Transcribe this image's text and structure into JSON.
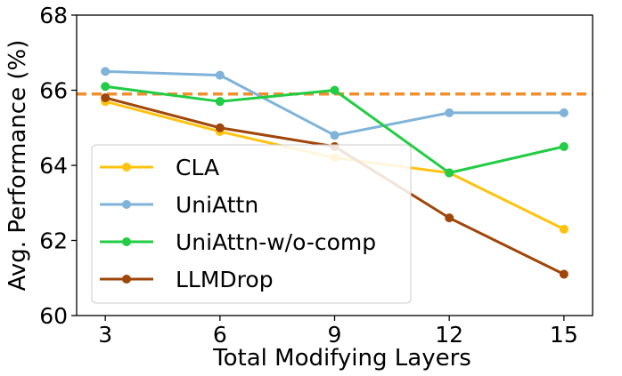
{
  "chart_data": {
    "type": "line",
    "xlabel": "Total Modifying Layers",
    "ylabel": "Avg. Performance (%)",
    "x": [
      3,
      6,
      9,
      12,
      15
    ],
    "xticks": [
      "3",
      "6",
      "9",
      "12",
      "15"
    ],
    "yticks": [
      "60",
      "62",
      "64",
      "66",
      "68"
    ],
    "xlim": [
      2.25,
      15.75
    ],
    "ylim": [
      60,
      68
    ],
    "grid": false,
    "legend_position": "lower-left",
    "reference_line": {
      "y": 65.9,
      "style": "dashed",
      "color": "#f28e2b"
    },
    "series": [
      {
        "name": "CLA",
        "color": "#ffc20e",
        "values": [
          65.7,
          64.9,
          64.2,
          63.8,
          62.3
        ]
      },
      {
        "name": "UniAttn",
        "color": "#7fb3d9",
        "values": [
          66.5,
          66.4,
          64.8,
          65.4,
          65.4
        ]
      },
      {
        "name": "UniAttn-w/o-comp",
        "color": "#22cc44",
        "values": [
          66.1,
          65.7,
          66.0,
          63.8,
          64.5
        ]
      },
      {
        "name": "LLMDrop",
        "color": "#a0460a",
        "values": [
          65.8,
          65.0,
          64.5,
          62.6,
          61.1
        ]
      }
    ]
  }
}
